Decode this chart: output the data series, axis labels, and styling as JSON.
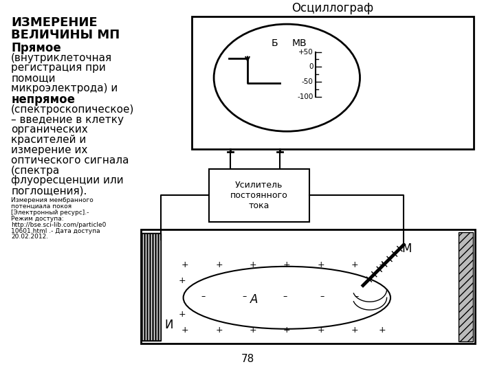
{
  "bg_color": "#ffffff",
  "title_bold1": "ИЗМЕРЕНИЕ",
  "title_bold2": "ВЕЛИЧИНЫ МП",
  "text_bold3": "Прямое",
  "text_normal": "(внутриклеточная\nрегистрация при\nпомощи\nмикроэлектрода) и",
  "text_bold4": "непрямое",
  "text_normal2": "(спектроскопическое)\n– введение в клетку\nорганических\nкрасителей и\nизмерение их\nоптического сигнала\n(спектра\nфлуоресценции или\nпоглощения).",
  "citation_text": "Измерения мембранного\nпотенциала покоя\n[Электронный ресурс].-\nРежим доступа:\nhttp://bse.sci-lib.com/particle0\n10601.html .- Дата доступа\n20.02.2012.",
  "page_number": "78",
  "oscillograph_label": "Осциллограф",
  "amplifier_label": "Усилитель\nпостоянного\nтока",
  "mv_label": "МВ",
  "b_label": "Б",
  "scale_values": [
    "+50",
    "0",
    "-50",
    "-100"
  ],
  "label_i": "И",
  "label_m": "М",
  "label_a": "А"
}
